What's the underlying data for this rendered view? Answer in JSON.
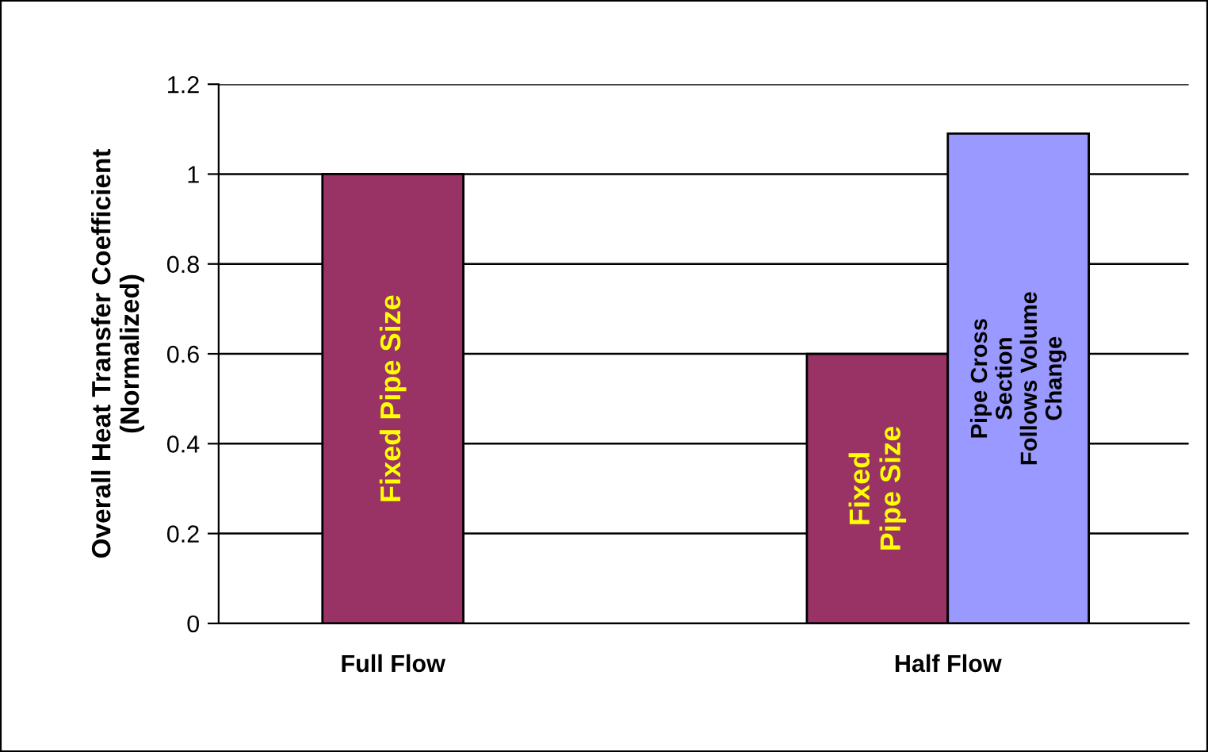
{
  "chart_data": {
    "type": "bar",
    "ylabel": "Overall Heat Transfer Coefficient\n(Normalized)",
    "categories": [
      "Full Flow",
      "Half Flow"
    ],
    "series": [
      {
        "name": "Fixed Pipe Size",
        "color": "#993366",
        "values": [
          1.0,
          0.6
        ]
      },
      {
        "name": "Pipe Cross Section Follows Volume Change",
        "color": "#9999ff",
        "values": [
          null,
          1.09
        ]
      }
    ],
    "ylim": [
      0,
      1.2
    ],
    "yticks": [
      0,
      0.2,
      0.4,
      0.6,
      0.8,
      1,
      1.2
    ],
    "grid": "y",
    "legend": false
  }
}
